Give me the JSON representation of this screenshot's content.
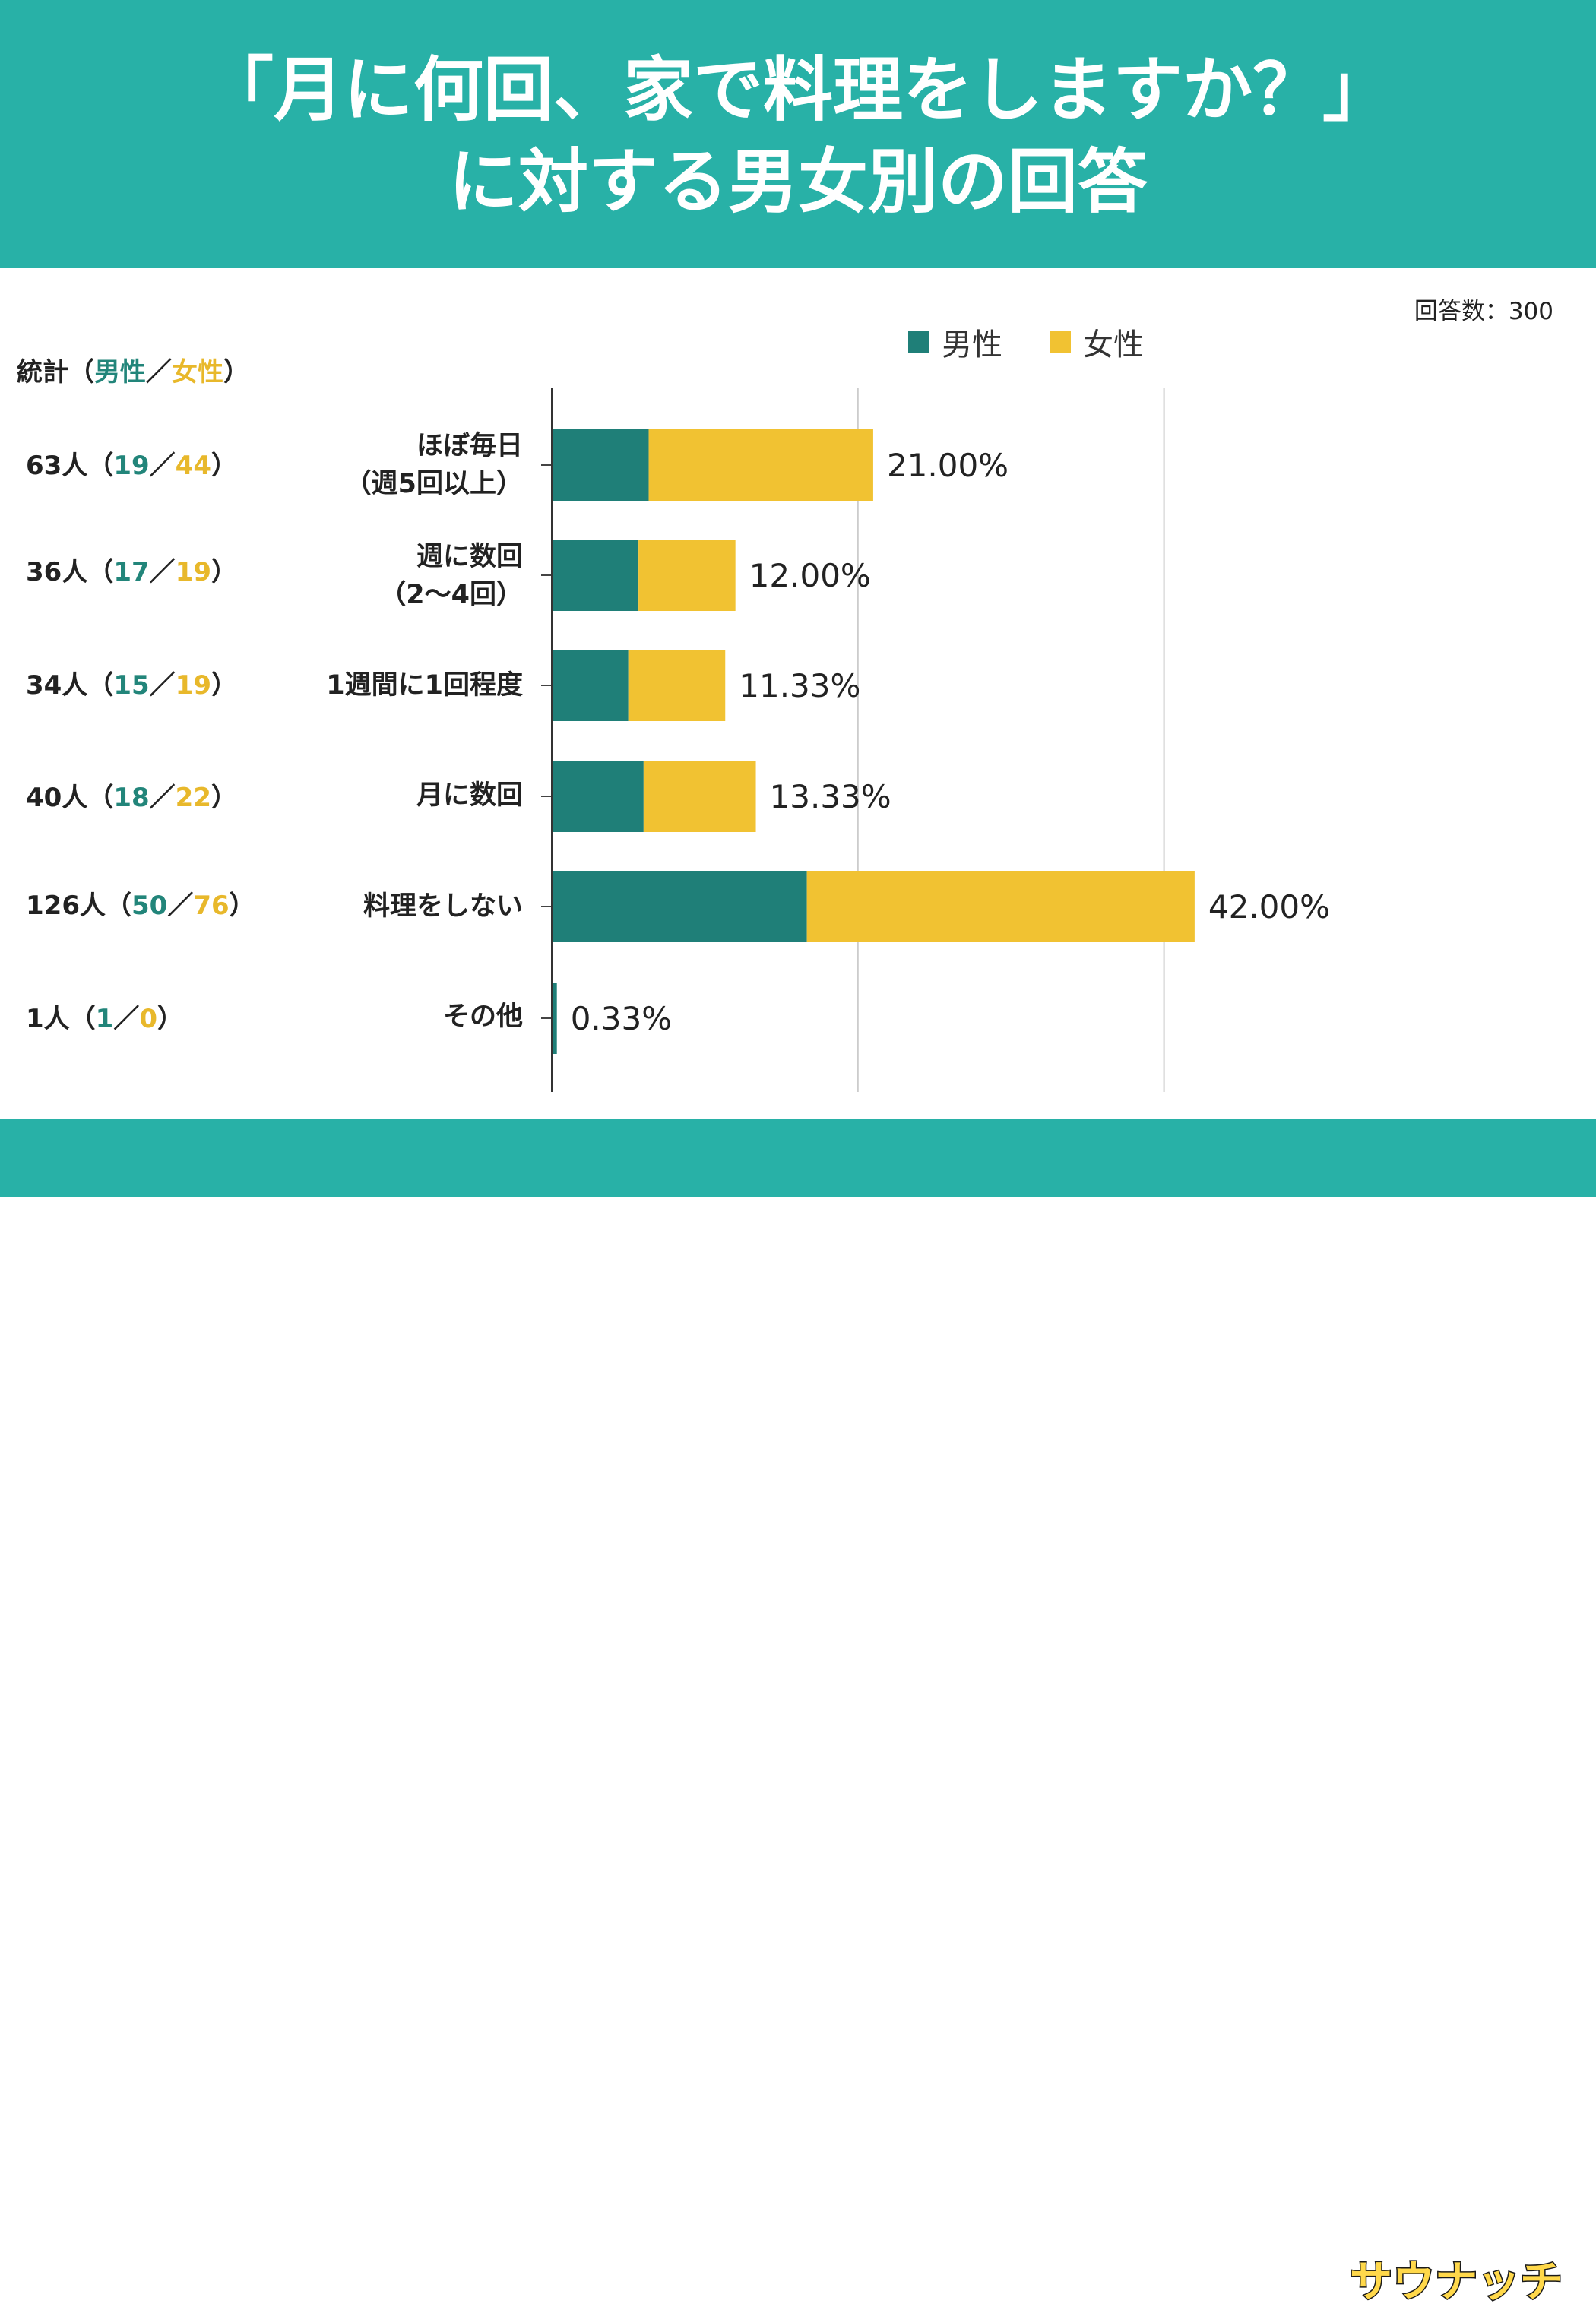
{
  "header": {
    "title_line1": "「月に何回、家で料理をしますか？」",
    "title_line2": "に対する男女別の回答"
  },
  "sample_size": "回答数：300",
  "legend": {
    "male": "男性",
    "female": "女性"
  },
  "stats": {
    "header_prefix": "統計（",
    "header_male": "男性",
    "header_sep": "／",
    "header_female": "女性",
    "header_suffix": "）",
    "rows": [
      {
        "total": "63人（",
        "male": "19",
        "sep": "／",
        "female": "44",
        "close": "）"
      },
      {
        "total": "36人（",
        "male": "17",
        "sep": "／",
        "female": "19",
        "close": "）"
      },
      {
        "total": "34人（",
        "male": "15",
        "sep": "／",
        "female": "19",
        "close": "）"
      },
      {
        "total": "40人（",
        "male": "18",
        "sep": "／",
        "female": "22",
        "close": "）"
      },
      {
        "total": "126人（",
        "male": "50",
        "sep": "／",
        "female": "76",
        "close": "）"
      },
      {
        "total": "1人（",
        "male": "1",
        "sep": "／",
        "female": "0",
        "close": "）"
      }
    ]
  },
  "colors": {
    "header_bg": "#28b1a7",
    "male": "#1f7f78",
    "female": "#f1c232",
    "grid": "#cccccc"
  },
  "logo_text": "サウナッチ",
  "chart_data": {
    "type": "bar",
    "orientation": "horizontal",
    "stacked": true,
    "categories": [
      [
        "ほぼ毎日",
        "（週5回以上）"
      ],
      [
        "週に数回",
        "（2〜4回）"
      ],
      [
        "1週間に1回程度"
      ],
      [
        "月に数回"
      ],
      [
        "料理をしない"
      ],
      [
        "その他"
      ]
    ],
    "series": [
      {
        "name": "男性",
        "values": [
          19,
          17,
          15,
          18,
          50,
          1
        ]
      },
      {
        "name": "女性",
        "values": [
          44,
          19,
          19,
          22,
          76,
          0
        ]
      }
    ],
    "data_labels": [
      "21.00%",
      "12.00%",
      "11.33%",
      "13.33%",
      "42.00%",
      "0.33%"
    ],
    "xlim": [
      0,
      150
    ],
    "x_gridlines": [
      0,
      60,
      120
    ],
    "legend_position": "top",
    "grid": true
  }
}
